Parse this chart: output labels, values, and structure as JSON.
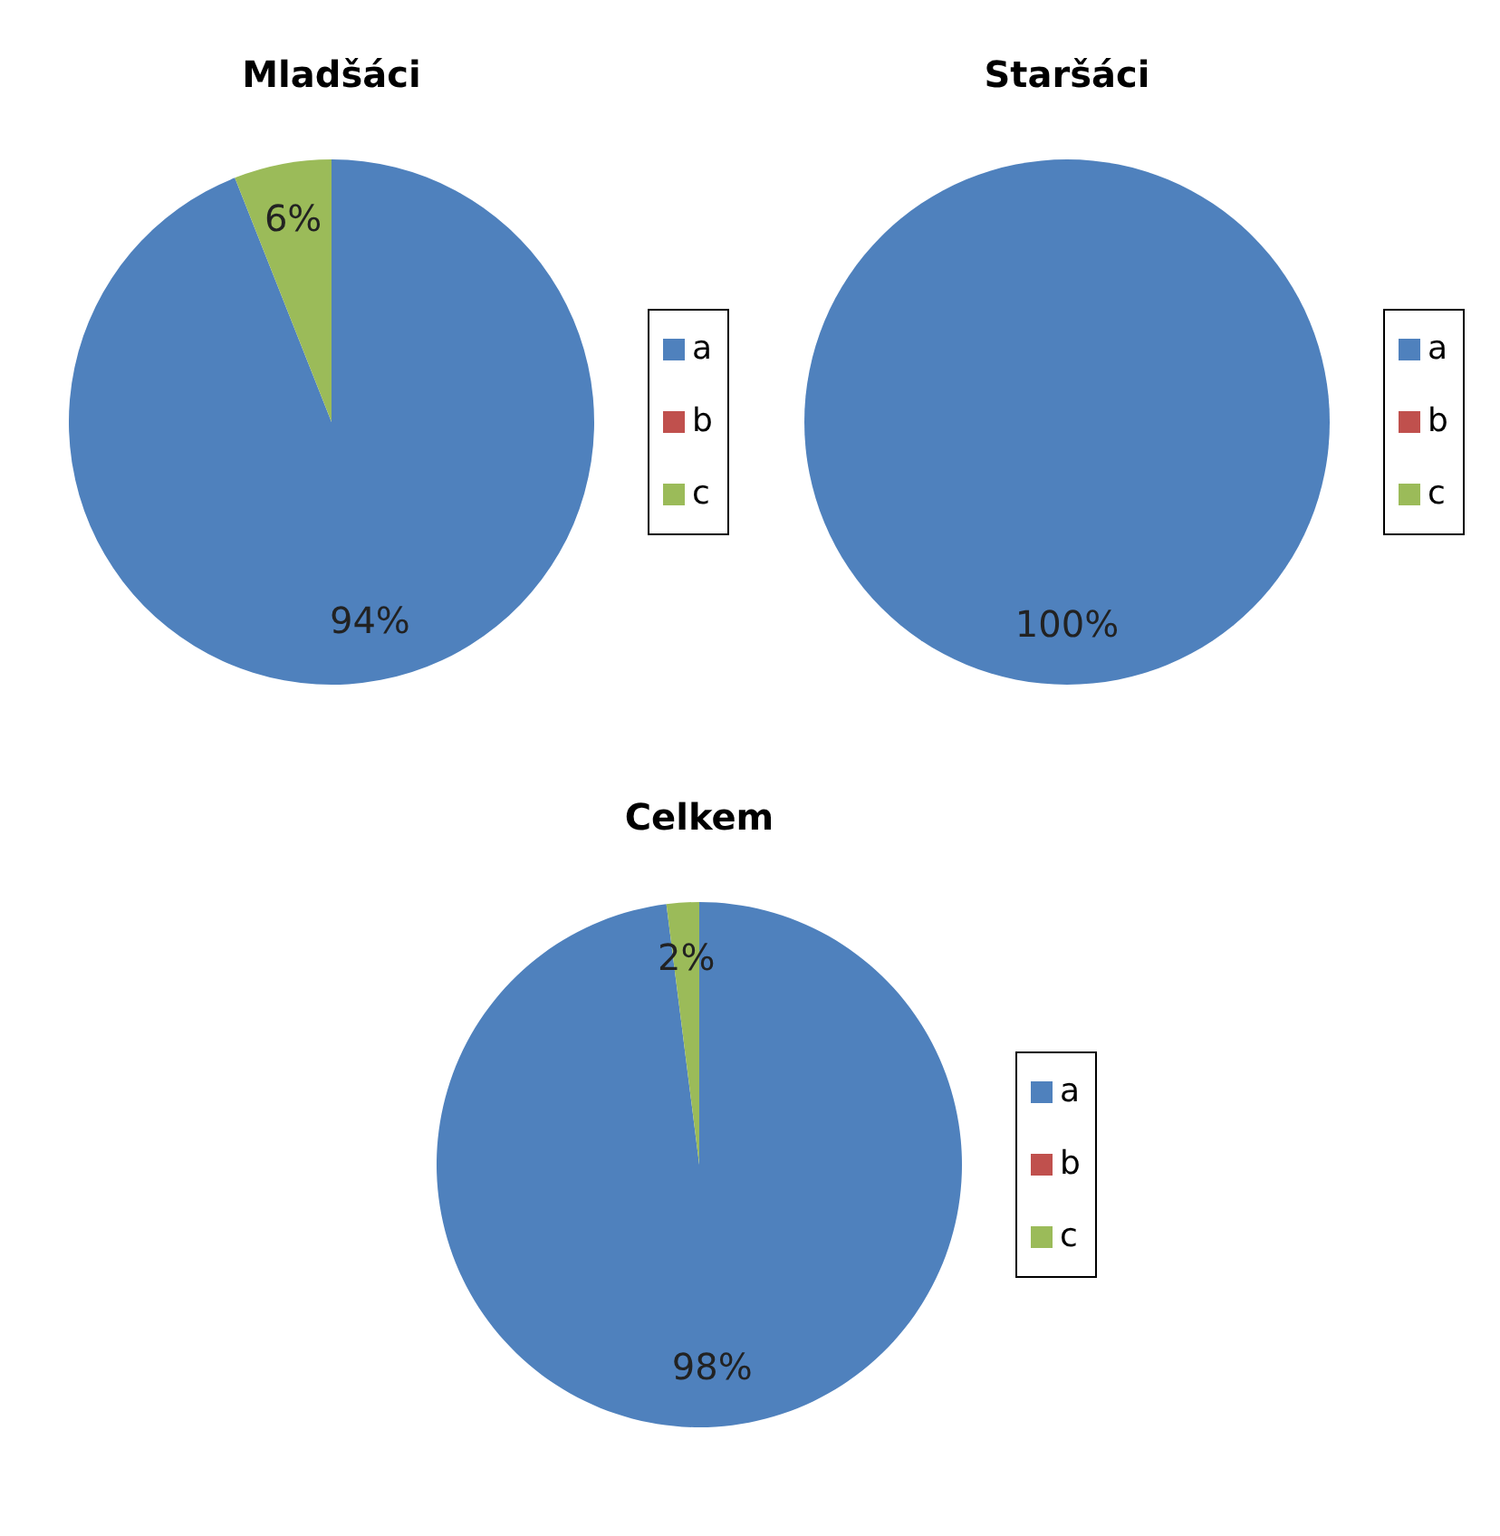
{
  "chart_data": [
    {
      "type": "pie",
      "title": "Mladšáci",
      "categories": [
        "a",
        "b",
        "c"
      ],
      "values": [
        94,
        0,
        6
      ],
      "colors": [
        "#4f81bd",
        "#c0504d",
        "#9bbb59"
      ],
      "value_labels": [
        "94%",
        null,
        "6%"
      ],
      "legend": "right"
    },
    {
      "type": "pie",
      "title": "Staršáci",
      "categories": [
        "a",
        "b",
        "c"
      ],
      "values": [
        100,
        0,
        0
      ],
      "colors": [
        "#4f81bd",
        "#c0504d",
        "#9bbb59"
      ],
      "value_labels": [
        "100%",
        null,
        null
      ],
      "legend": "right"
    },
    {
      "type": "pie",
      "title": "Celkem",
      "categories": [
        "a",
        "b",
        "c"
      ],
      "values": [
        98,
        0,
        2
      ],
      "colors": [
        "#4f81bd",
        "#c0504d",
        "#9bbb59"
      ],
      "value_labels": [
        "98%",
        null,
        "2%"
      ],
      "legend": "right"
    }
  ]
}
